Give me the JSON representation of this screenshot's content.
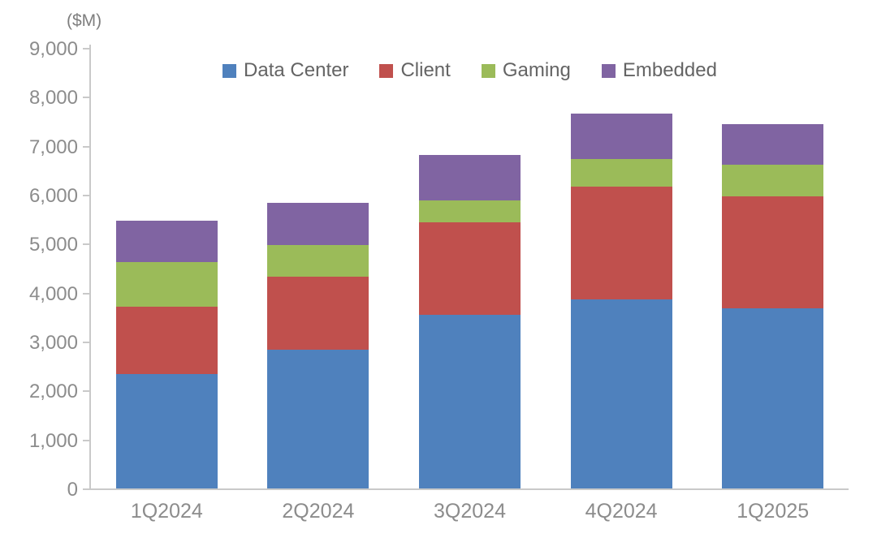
{
  "chart_data": {
    "type": "bar",
    "stacked": true,
    "unit_label": "($M)",
    "categories": [
      "1Q2024",
      "2Q2024",
      "3Q2024",
      "4Q2024",
      "1Q2025"
    ],
    "series": [
      {
        "name": "Data Center",
        "color": "#4F81BD",
        "values": [
          2337,
          2834,
          3549,
          3859,
          3674
        ]
      },
      {
        "name": "Client",
        "color": "#C0504D",
        "values": [
          1368,
          1492,
          1881,
          2313,
          2294
        ]
      },
      {
        "name": "Gaming",
        "color": "#9BBB59",
        "values": [
          922,
          648,
          462,
          563,
          647
        ]
      },
      {
        "name": "Embedded",
        "color": "#8064A2",
        "values": [
          846,
          861,
          927,
          923,
          823
        ]
      }
    ],
    "ylim": [
      0,
      9000
    ],
    "ytick_step": 1000,
    "ytick_labels": [
      "0",
      "1,000",
      "2,000",
      "3,000",
      "4,000",
      "5,000",
      "6,000",
      "7,000",
      "8,000",
      "9,000"
    ],
    "grid": false,
    "legend_position": "top",
    "axis_color": "#c9c9c9",
    "tick_label_color": "#8c8c8c",
    "legend_label_color": "#646464"
  }
}
